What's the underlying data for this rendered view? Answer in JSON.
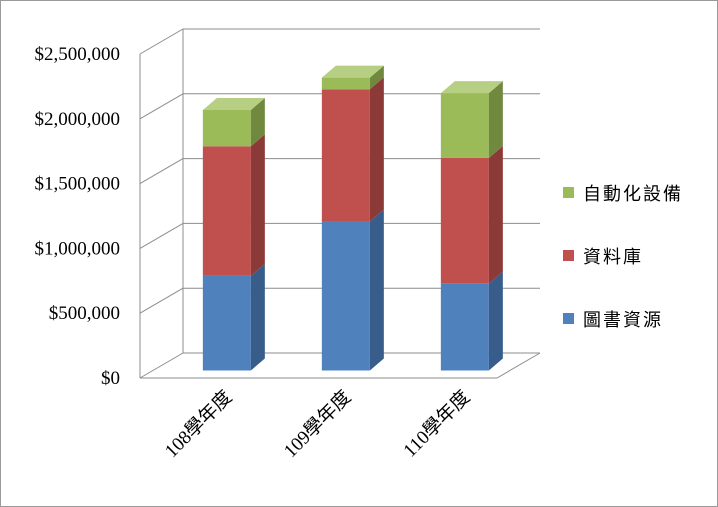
{
  "chart_data": {
    "type": "bar",
    "stacked": true,
    "three_d": true,
    "categories": [
      "108學年度",
      "109學年度",
      "110學年度"
    ],
    "series": [
      {
        "name": "圖書資源",
        "values": [
          730000,
          1150000,
          670000
        ],
        "color": "#4f81bd",
        "side": "#385d8a",
        "top": "#7fa2cf"
      },
      {
        "name": "資料庫",
        "values": [
          1000000,
          1020000,
          970000
        ],
        "color": "#c0504d",
        "side": "#8c3a38",
        "top": "#d47f7c"
      },
      {
        "name": "自動化設備",
        "values": [
          280000,
          90000,
          500000
        ],
        "color": "#9bbb59",
        "side": "#71893f",
        "top": "#b6cf83"
      }
    ],
    "ylim": [
      0,
      2500000
    ],
    "yticks": [
      0,
      500000,
      1000000,
      1500000,
      2000000,
      2500000
    ],
    "ytick_labels": [
      "$0",
      "$500,000",
      "$1,000,000",
      "$1,500,000",
      "$2,000,000",
      "$2,500,000"
    ],
    "grid": true,
    "legend_position": "right"
  }
}
